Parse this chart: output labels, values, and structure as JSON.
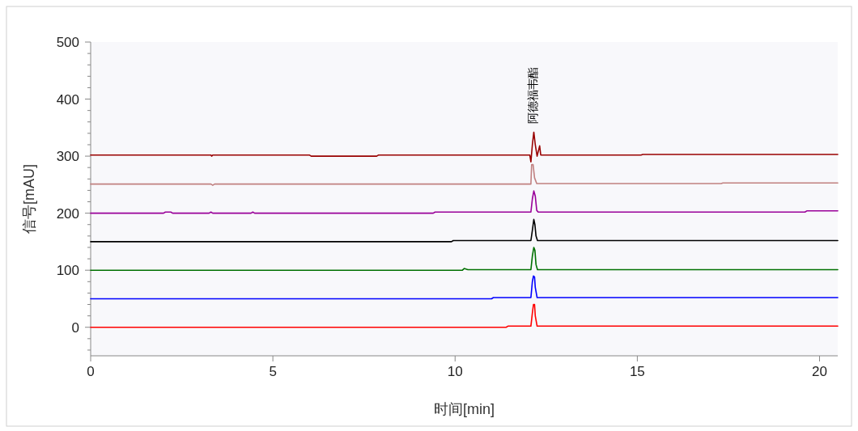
{
  "chart_data": {
    "type": "line",
    "xlabel": "时间[min]",
    "ylabel": "信号[mAU]",
    "xlim": [
      0,
      20.5
    ],
    "ylim": [
      -50,
      500
    ],
    "xticks": [
      0,
      5,
      10,
      15,
      20
    ],
    "yticks": [
      {
        "value": -40,
        "label": null
      },
      {
        "value": -20,
        "label": null
      },
      0,
      {
        "value": 20,
        "label": null
      },
      {
        "value": 40,
        "label": null
      },
      {
        "value": 60,
        "label": null
      },
      {
        "value": 80,
        "label": null
      },
      100,
      {
        "value": 120,
        "label": null
      },
      {
        "value": 140,
        "label": null
      },
      {
        "value": 160,
        "label": null
      },
      {
        "value": 180,
        "label": null
      },
      200,
      {
        "value": 220,
        "label": null
      },
      {
        "value": 240,
        "label": null
      },
      {
        "value": 260,
        "label": null
      },
      {
        "value": 280,
        "label": null
      },
      300,
      {
        "value": 320,
        "label": null
      },
      {
        "value": 340,
        "label": null
      },
      {
        "value": 360,
        "label": null
      },
      {
        "value": 380,
        "label": null
      },
      400,
      {
        "value": 420,
        "label": null
      },
      {
        "value": 440,
        "label": null
      },
      {
        "value": 460,
        "label": null
      },
      {
        "value": 480,
        "label": null
      },
      500
    ],
    "grid": false,
    "marker": "none",
    "line_style": "solid",
    "annotations": [
      {
        "text": "阿德福韦酯",
        "x": 12.16,
        "y": 342
      }
    ],
    "series": [
      {
        "color": "#ff0000",
        "x": [
          0,
          11.4,
          11.45,
          12.08,
          12.12,
          12.15,
          12.18,
          12.2,
          12.25,
          20.5
        ],
        "values": [
          0,
          0,
          2,
          2,
          25,
          40,
          40,
          20,
          2,
          2
        ]
      },
      {
        "color": "#0000ff",
        "x": [
          0,
          11.0,
          11.05,
          12.08,
          12.12,
          12.15,
          12.18,
          12.2,
          12.25,
          20.5
        ],
        "values": [
          50,
          50,
          52,
          52,
          80,
          90,
          88,
          70,
          52,
          52
        ]
      },
      {
        "color": "#007000",
        "x": [
          0,
          10.2,
          10.25,
          10.35,
          12.08,
          12.12,
          12.16,
          12.19,
          12.22,
          12.26,
          20.5
        ],
        "values": [
          100,
          100,
          103,
          101,
          101,
          125,
          140,
          135,
          110,
          101,
          101
        ]
      },
      {
        "color": "#000000",
        "x": [
          0,
          9.9,
          9.95,
          12.08,
          12.12,
          12.16,
          12.19,
          12.22,
          12.26,
          20.5
        ],
        "values": [
          150,
          150,
          152,
          152,
          170,
          189,
          180,
          160,
          152,
          152
        ]
      },
      {
        "color": "#990099",
        "x": [
          0,
          2.0,
          2.05,
          2.2,
          2.25,
          3.25,
          3.3,
          3.35,
          4.4,
          4.45,
          4.5,
          9.4,
          9.45,
          12.08,
          12.12,
          12.16,
          12.2,
          12.24,
          12.28,
          19.6,
          19.65,
          20.5
        ],
        "values": [
          200,
          200,
          202,
          202,
          200,
          200,
          202,
          200,
          200,
          202,
          200,
          200,
          202,
          202,
          225,
          239,
          230,
          205,
          202,
          202,
          204,
          204
        ]
      },
      {
        "color": "#c08080",
        "x": [
          0,
          3.3,
          3.35,
          3.4,
          12.08,
          12.1,
          12.14,
          12.18,
          12.24,
          17.3,
          17.35,
          20.5
        ],
        "values": [
          251,
          251,
          249,
          251,
          251,
          285,
          285,
          262,
          252,
          252,
          253,
          253
        ]
      },
      {
        "color": "#990000",
        "x": [
          0,
          3.3,
          3.32,
          3.35,
          6.0,
          6.05,
          7.85,
          7.9,
          12.05,
          12.08,
          12.12,
          12.16,
          12.2,
          12.25,
          12.32,
          12.35,
          15.1,
          15.15,
          20.5
        ],
        "values": [
          302,
          302,
          300,
          302,
          302,
          300,
          300,
          302,
          302,
          290,
          320,
          342,
          320,
          300,
          318,
          302,
          302,
          303,
          303
        ]
      }
    ]
  }
}
